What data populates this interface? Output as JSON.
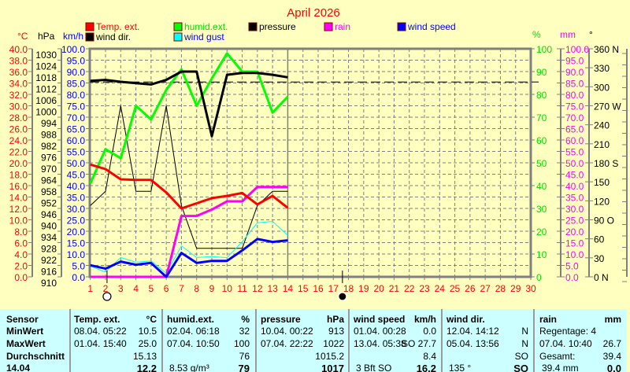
{
  "title": "April 2026",
  "legend": [
    {
      "label": "Temp. ext.",
      "color": "#ff0000",
      "text_color": "#ff0000"
    },
    {
      "label": "humid.ext.",
      "color": "#00ff00",
      "text_color": "#00e000"
    },
    {
      "label": "pressure",
      "color": "#000000",
      "text_color": "#000000"
    },
    {
      "label": "rain",
      "color": "#ff00ff",
      "text_color": "#ff00ff"
    },
    {
      "label": "wind speed",
      "color": "#0000ff",
      "text_color": "#0000ff"
    },
    {
      "label": "wind dir.",
      "color": "#000000",
      "text_color": "#000000"
    },
    {
      "label": "wind gust",
      "color": "#00ffff",
      "text_color": "#0000ff"
    }
  ],
  "axes": {
    "left_units": [
      "°C",
      "hPa",
      "km/h"
    ],
    "right_units": [
      "%",
      "mm",
      "°"
    ],
    "temp_labels": [
      "40.0",
      "38.0",
      "36.0",
      "34.0",
      "32.0",
      "30.0",
      "28.0",
      "26.0",
      "24.0",
      "22.0",
      "20.0",
      "18.0",
      "16.0",
      "14.0",
      "12.0",
      "10.0",
      "8.0",
      "6.0",
      "4.0",
      "2.0",
      "0.0"
    ],
    "hpa_labels": [
      "1030",
      "1024",
      "1018",
      "1012",
      "1006",
      "1000",
      "994",
      "988",
      "982",
      "976",
      "970",
      "964",
      "958",
      "952",
      "946",
      "940",
      "934",
      "928",
      "922",
      "916",
      "910"
    ],
    "kmh_labels": [
      "100.0",
      "95.0",
      "90.0",
      "85.0",
      "80.0",
      "75.0",
      "70.0",
      "65.0",
      "60.0",
      "55.0",
      "50.0",
      "45.0",
      "40.0",
      "35.0",
      "30.0",
      "25.0",
      "20.0",
      "15.0",
      "10.0",
      "5.0",
      "0.0"
    ],
    "pct_labels": [
      "100",
      "90",
      "80",
      "70",
      "60",
      "50",
      "40",
      "30",
      "20",
      "10",
      "0"
    ],
    "mm_labels": [
      "100.0",
      "95.0",
      "90.0",
      "85.0",
      "80.0",
      "75.0",
      "70.0",
      "65.0",
      "60.0",
      "55.0",
      "50.0",
      "45.0",
      "40.0",
      "35.0",
      "30.0",
      "25.0",
      "20.0",
      "15.0",
      "10.0",
      "5.0",
      "0.0"
    ],
    "deg_labels": [
      "360 N",
      "330",
      "300",
      "270 W",
      "240",
      "210",
      "180 S",
      "150",
      "120",
      "90  O",
      "60",
      "30",
      "0   N"
    ],
    "x_labels": [
      "1",
      "2",
      "3",
      "4",
      "5",
      "6",
      "7",
      "8",
      "9",
      "10",
      "11",
      "12",
      "13",
      "14",
      "15",
      "16",
      "17",
      "18",
      "19",
      "20",
      "21",
      "22",
      "23",
      "24",
      "25",
      "26",
      "27",
      "28",
      "29",
      "30"
    ]
  },
  "chart_data": {
    "type": "line",
    "title": "April 2026",
    "x": [
      1,
      2,
      3,
      4,
      5,
      6,
      7,
      8,
      9,
      10,
      11,
      12,
      13,
      14
    ],
    "xlim": [
      1,
      30
    ],
    "current_day": 14,
    "series": [
      {
        "name": "Temp. ext.",
        "unit": "°C",
        "ylim": [
          0,
          40
        ],
        "color": "#ff0000",
        "width": 3,
        "values": [
          19.7,
          18.9,
          17.1,
          17.0,
          17.0,
          14.8,
          12.0,
          12.9,
          13.8,
          14.2,
          14.7,
          12.7,
          14.2,
          12.1
        ]
      },
      {
        "name": "humid.ext.",
        "unit": "%",
        "ylim": [
          0,
          100
        ],
        "color": "#00ff00",
        "width": 3,
        "values": [
          41,
          56,
          52,
          75,
          69,
          82,
          91,
          75,
          87,
          98,
          90,
          90,
          72,
          79
        ]
      },
      {
        "name": "pressure",
        "unit": "hPa",
        "ylim": [
          910,
          1030
        ],
        "color": "#000000",
        "width": 3,
        "values": [
          1013.1,
          1013.6,
          1012.6,
          1011.9,
          1011.2,
          1013.6,
          1018,
          1018,
          984,
          1016.3,
          1017.3,
          1017.3,
          1016.3,
          1015
        ]
      },
      {
        "name": "rain",
        "unit": "mm",
        "ylim": [
          0,
          100
        ],
        "color": "#ff00ff",
        "width": 3,
        "values": [
          0,
          0,
          0,
          0,
          0,
          0,
          26.7,
          26.7,
          29.5,
          33.1,
          33.1,
          39.4,
          39.4,
          39.4
        ]
      },
      {
        "name": "wind speed",
        "unit": "km/h",
        "ylim": [
          0,
          100
        ],
        "color": "#0000ff",
        "width": 3,
        "values": [
          5.1,
          3.6,
          6.7,
          5.3,
          6.1,
          0,
          10.5,
          6.1,
          7.0,
          7.0,
          11.6,
          16.6,
          15.3,
          16.0
        ]
      },
      {
        "name": "wind dir.",
        "unit": "°",
        "ylim": [
          0,
          360
        ],
        "color": "#000000",
        "width": 1,
        "values": [
          112.5,
          135,
          270,
          135,
          135,
          270,
          112.5,
          45,
          45,
          45,
          45,
          112.5,
          135,
          135
        ]
      },
      {
        "name": "wind gust",
        "unit": "km/h",
        "ylim": [
          0,
          100
        ],
        "color": "#00ffff",
        "width": 1,
        "values": [
          4.7,
          2.1,
          8.5,
          6.4,
          7.0,
          1.6,
          13.6,
          8.5,
          8.9,
          8.4,
          15.4,
          23.7,
          24.3,
          18.2
        ]
      }
    ],
    "pressure_reference_hpa": 1012.5,
    "moon_phases": [
      {
        "day": 2.1,
        "phase": "full"
      },
      {
        "day": 17.6,
        "phase": "new"
      }
    ],
    "grid": true
  },
  "table": {
    "row_labels": [
      "Sensor",
      "MinWert",
      "MaxWert",
      "Durchschnitt",
      "14.04"
    ],
    "columns": [
      {
        "header": "Temp. ext.",
        "unit": "°C",
        "min_time": "08.04.  05:22",
        "min_value": "10.5",
        "max_time": "01.04.  15:40",
        "max_value": "25.0",
        "avg": "15.13",
        "current_extra": "",
        "current_value": "12.2"
      },
      {
        "header": "humid.ext.",
        "unit": "%",
        "min_time": "02.04.  06:18",
        "min_value": "32",
        "max_time": "07.04.  10:50",
        "max_value": "100",
        "avg": "76",
        "current_extra": "8.53 g/m³",
        "current_value": "79"
      },
      {
        "header": "pressure",
        "unit": "hPa",
        "min_time": "10.04.  00:22",
        "min_value": "913",
        "max_time": "07.04.  22:22",
        "max_value": "1022",
        "avg": "1015.2",
        "current_extra": "",
        "current_value": "1017"
      },
      {
        "header": "wind speed",
        "unit": "km/h",
        "min_time": "01.04.  00:28",
        "min_value": "0.0",
        "max_time": "13.04.  05:38",
        "max_value": "SO 27.7",
        "avg": "8.4",
        "current_extra": "3 Bft SO",
        "current_value": "16.2"
      },
      {
        "header": "wind dir.",
        "unit": "",
        "min_time": "12.04.  14:12",
        "min_value": "N",
        "max_time": "05.04.  13:56",
        "max_value": "N",
        "avg": "SO",
        "current_extra": "135 °",
        "current_value": "SO"
      },
      {
        "header": "rain",
        "unit": "mm",
        "min_time": "Regentage: 4",
        "min_value": "",
        "max_time": "07.04.  10:40",
        "max_value": "26.7",
        "avg_label": "Gesamt:",
        "avg": "39.4",
        "current_extra": "39.4 mm",
        "current_value": "0.0"
      }
    ]
  }
}
